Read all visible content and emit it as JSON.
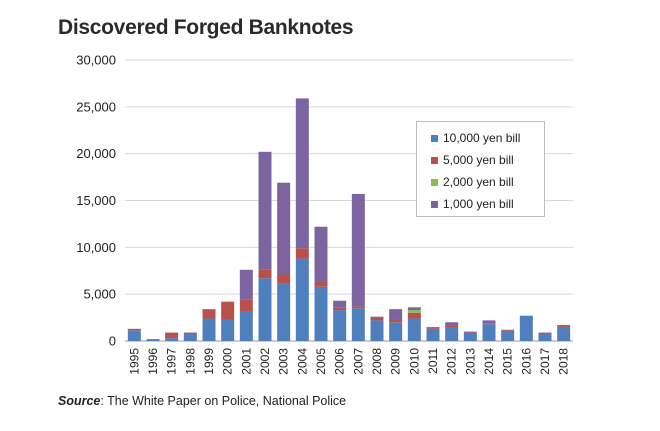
{
  "title": "Discovered Forged Banknotes",
  "source": {
    "label": "Source",
    "text": ": The White Paper on Police, National Police"
  },
  "chart_data": {
    "type": "bar",
    "stacked": true,
    "categories": [
      "1995",
      "1996",
      "1997",
      "1998",
      "1999",
      "2000",
      "2001",
      "2002",
      "2003",
      "2004",
      "2005",
      "2006",
      "2007",
      "2008",
      "2009",
      "2010",
      "2011",
      "2012",
      "2013",
      "2014",
      "2015",
      "2016",
      "2017",
      "2018"
    ],
    "series": [
      {
        "name": "10,000 yen bill",
        "color": "#4f7fbc",
        "values": [
          1000,
          200,
          300,
          800,
          2400,
          2300,
          3200,
          6700,
          6100,
          8800,
          5800,
          3300,
          3500,
          2200,
          2000,
          2400,
          1300,
          1400,
          900,
          1800,
          1100,
          2700,
          800,
          1500
        ]
      },
      {
        "name": "5,000 yen bill",
        "color": "#b9504c",
        "values": [
          100,
          0,
          600,
          100,
          1000,
          1900,
          1200,
          900,
          1000,
          1100,
          600,
          300,
          200,
          300,
          300,
          600,
          100,
          300,
          100,
          100,
          100,
          0,
          100,
          100
        ]
      },
      {
        "name": "2,000 yen bill",
        "color": "#8fb956",
        "values": [
          0,
          0,
          0,
          0,
          0,
          0,
          0,
          0,
          0,
          0,
          0,
          0,
          0,
          0,
          0,
          300,
          0,
          0,
          0,
          0,
          0,
          0,
          0,
          0
        ]
      },
      {
        "name": "1,000 yen bill",
        "color": "#7b64a0",
        "values": [
          200,
          0,
          0,
          0,
          0,
          0,
          3200,
          12600,
          9800,
          16000,
          5800,
          700,
          12000,
          100,
          1100,
          300,
          100,
          300,
          0,
          300,
          0,
          0,
          0,
          100
        ]
      }
    ],
    "ylim": [
      0,
      30000
    ],
    "yticks": [
      "0",
      "5,000",
      "10,000",
      "15,000",
      "20,000",
      "25,000",
      "30,000"
    ],
    "ytick_values": [
      0,
      5000,
      10000,
      15000,
      20000,
      25000,
      30000
    ],
    "grid": true,
    "legend_position": "top-right"
  }
}
